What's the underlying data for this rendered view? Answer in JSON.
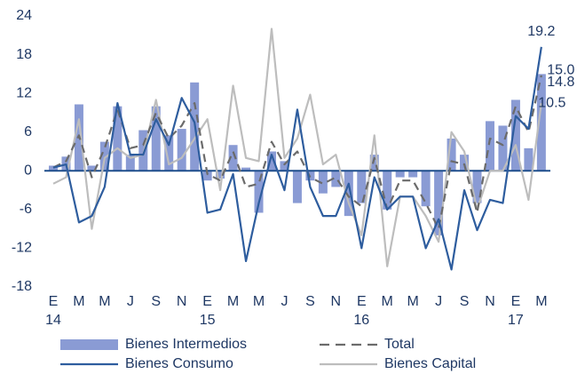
{
  "chart_data": {
    "type": "bar-line",
    "categories": [
      "E",
      null,
      "M",
      null,
      "M",
      null,
      "J",
      null,
      "S",
      null,
      "N",
      null,
      "E",
      null,
      "M",
      null,
      "M",
      null,
      "J",
      null,
      "S",
      null,
      "N",
      null,
      "E",
      null,
      "M",
      null,
      "M",
      null,
      "J",
      null,
      "S",
      null,
      "N",
      null,
      "E",
      null,
      "M"
    ],
    "years": [
      "14",
      "15",
      "16",
      "17"
    ],
    "ylim": [
      -18,
      24
    ],
    "yticks": [
      -18,
      -12,
      -6,
      0,
      6,
      12,
      18,
      24
    ],
    "series": [
      {
        "name": "Bienes Intermedios",
        "type": "bar",
        "color": "#8a9bd4",
        "values": [
          0.8,
          2.2,
          10.3,
          0.8,
          4.5,
          10,
          2.5,
          6.3,
          10,
          5.5,
          6.5,
          13.7,
          -1.5,
          -1.2,
          4,
          0.5,
          -6.5,
          3,
          1.5,
          -5,
          -1.5,
          -3.5,
          -2.5,
          -7,
          -5,
          2.5,
          -6,
          -1,
          -1,
          -5.5,
          -10,
          5,
          2.5,
          -5,
          7.7,
          7,
          11,
          3.5,
          15
        ],
        "value_labels": [
          null,
          null,
          null,
          null,
          null,
          null,
          null,
          null,
          null,
          null,
          null,
          null,
          null,
          null,
          null,
          null,
          null,
          null,
          null,
          null,
          null,
          null,
          null,
          null,
          null,
          null,
          null,
          null,
          null,
          null,
          null,
          null,
          null,
          null,
          null,
          null,
          null,
          null,
          "15.0"
        ]
      },
      {
        "name": "Total",
        "type": "dashed",
        "color": "#6b6b6b",
        "values": [
          0.5,
          1.5,
          5.5,
          -1,
          3.5,
          9.5,
          3.5,
          4,
          9,
          5,
          7,
          10.5,
          -0.5,
          -1.5,
          3,
          -2.5,
          -2,
          4.5,
          1,
          3,
          -1,
          -2,
          -1,
          -4,
          -5.5,
          2,
          -6,
          -1.5,
          -1.5,
          -5,
          -9,
          1.5,
          1,
          -6.5,
          5,
          4,
          10,
          6,
          14.8
        ],
        "value_labels": [
          null,
          null,
          null,
          null,
          null,
          null,
          null,
          null,
          null,
          null,
          null,
          null,
          null,
          null,
          null,
          null,
          null,
          null,
          null,
          null,
          null,
          null,
          null,
          null,
          null,
          null,
          null,
          null,
          null,
          null,
          null,
          null,
          null,
          null,
          null,
          null,
          null,
          null,
          "14.8"
        ]
      },
      {
        "name": "Bienes Consumo",
        "type": "line",
        "color": "#2e5d9e",
        "values": [
          0.5,
          1,
          -8,
          -7,
          -2.5,
          10.5,
          2.5,
          2.5,
          8,
          4,
          11.3,
          7.5,
          -6.5,
          -6,
          -0.5,
          -14,
          -5,
          2.5,
          -3,
          9.5,
          -2.5,
          -7,
          -7,
          -2,
          -12,
          -1,
          -6,
          -4,
          -4,
          -12,
          -7.5,
          -15.3,
          -3,
          -9.2,
          -4.5,
          -5,
          8.5,
          6.5,
          19.2
        ],
        "value_labels": [
          null,
          null,
          null,
          null,
          null,
          null,
          null,
          null,
          null,
          null,
          null,
          null,
          null,
          null,
          null,
          null,
          null,
          null,
          null,
          null,
          null,
          null,
          null,
          null,
          null,
          null,
          null,
          null,
          null,
          null,
          null,
          null,
          null,
          null,
          null,
          null,
          null,
          null,
          "19.2"
        ]
      },
      {
        "name": "Bienes Capital",
        "type": "line",
        "color": "#bdbdbd",
        "values": [
          -2,
          -1,
          8,
          -9,
          2,
          3.5,
          2,
          2.5,
          11,
          1,
          2,
          5,
          8,
          -3,
          13.2,
          2,
          1.5,
          22,
          2,
          5,
          11.8,
          1,
          2.5,
          -5,
          -10,
          5.5,
          -14.8,
          -4,
          -4,
          -7,
          -11,
          6,
          3,
          -6,
          0,
          0,
          4,
          -4.5,
          10.5
        ],
        "value_labels": [
          null,
          null,
          null,
          null,
          null,
          null,
          null,
          null,
          null,
          null,
          null,
          null,
          null,
          null,
          null,
          null,
          null,
          null,
          null,
          null,
          null,
          null,
          null,
          null,
          null,
          null,
          null,
          null,
          null,
          null,
          null,
          null,
          null,
          null,
          null,
          null,
          null,
          null,
          "10.5"
        ]
      }
    ]
  }
}
